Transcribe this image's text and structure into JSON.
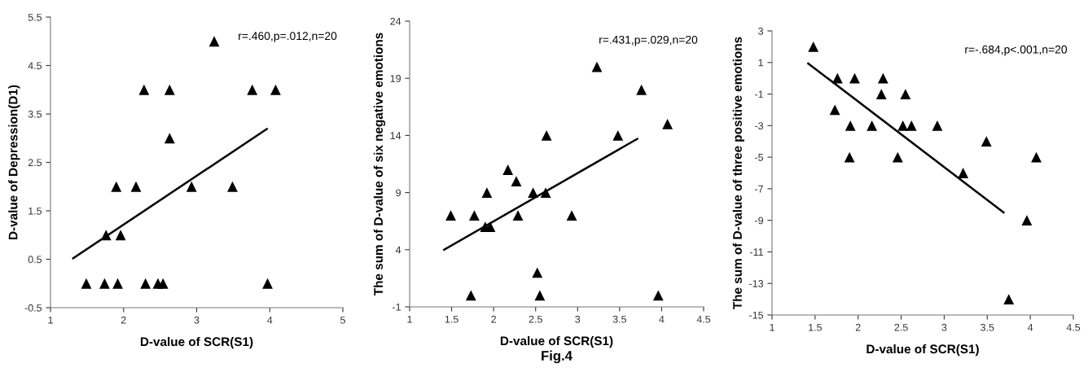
{
  "chart_data": [
    {
      "type": "scatter",
      "xlabel": "D-value of SCR(S1)",
      "ylabel": "D-value of Depression(D1)",
      "annotations": [
        "r=.460,p=.012,n=20"
      ],
      "grid": false,
      "xlim": [
        1,
        5
      ],
      "xticks": [
        1,
        2,
        3,
        4,
        5
      ],
      "ylim": [
        -0.5,
        5.5
      ],
      "yticks": [
        -0.5,
        0.5,
        1.5,
        2.5,
        3.5,
        4.5,
        5.5
      ],
      "series": [
        {
          "type": "scatter",
          "marker": "triangle",
          "color": "#000000",
          "x": [
            3.24,
            2.28,
            2.63,
            3.76,
            4.08,
            2.63,
            1.9,
            2.17,
            2.93,
            3.49,
            1.76,
            1.96,
            1.49,
            1.74,
            1.92,
            2.3,
            2.47,
            2.54,
            3.97
          ],
          "values": [
            5,
            4,
            4,
            4,
            4,
            3,
            2,
            2,
            2,
            2,
            1,
            1,
            0,
            0,
            0,
            0,
            0,
            0,
            0
          ]
        },
        {
          "type": "line",
          "color": "#000000",
          "x": [
            1.31,
            3.96
          ],
          "values": [
            0.52,
            3.19
          ]
        }
      ]
    },
    {
      "type": "scatter",
      "xlabel": "D-value of SCR(S1)",
      "ylabel": "The sum of D-value of six negative emotions",
      "annotations": [
        "r=.431,p=.029,n=20",
        "Fig.4"
      ],
      "grid": false,
      "xlim": [
        1,
        4.5
      ],
      "xticks": [
        1,
        1.5,
        2,
        2.5,
        3,
        3.5,
        4,
        4.5
      ],
      "ylim": [
        -1,
        24
      ],
      "yticks": [
        -1,
        4,
        9,
        14,
        19,
        24
      ],
      "series": [
        {
          "type": "scatter",
          "marker": "triangle",
          "color": "#000000",
          "x": [
            3.23,
            3.76,
            4.07,
            2.63,
            3.48,
            2.17,
            2.27,
            1.92,
            2.47,
            2.62,
            1.49,
            1.77,
            2.29,
            2.93,
            1.9,
            1.96,
            2.52,
            1.73,
            2.55,
            3.96
          ],
          "values": [
            20,
            18,
            15,
            14,
            14,
            11,
            10,
            9,
            9,
            9,
            7,
            7,
            7,
            7,
            6,
            6,
            2,
            0,
            0,
            0
          ]
        },
        {
          "type": "line",
          "color": "#000000",
          "x": [
            1.41,
            3.71
          ],
          "values": [
            4.0,
            13.7
          ]
        }
      ]
    },
    {
      "type": "scatter",
      "xlabel": "D-value of SCR(S1)",
      "ylabel": "The sum of D-value of three positive emotions",
      "annotations": [
        "r=-.684,p<.001,n=20"
      ],
      "grid": false,
      "xlim": [
        1,
        4.5
      ],
      "xticks": [
        1,
        1.5,
        2,
        2.5,
        3,
        3.5,
        4,
        4.5
      ],
      "ylim": [
        -15,
        3
      ],
      "yticks": [
        -15,
        -13,
        -11,
        -9,
        -7,
        -5,
        -3,
        -1,
        1,
        3
      ],
      "series": [
        {
          "type": "scatter",
          "marker": "triangle",
          "color": "#000000",
          "x": [
            1.48,
            1.76,
            1.96,
            2.29,
            2.27,
            2.55,
            1.73,
            1.91,
            2.16,
            2.52,
            2.62,
            2.92,
            3.49,
            1.9,
            2.46,
            4.07,
            3.22,
            3.96,
            3.75
          ],
          "values": [
            2,
            0,
            0,
            0,
            -1,
            -1,
            -2,
            -3,
            -3,
            -3,
            -3,
            -3,
            -4,
            -5,
            -5,
            -5,
            -6,
            -9,
            -14
          ]
        },
        {
          "type": "line",
          "color": "#000000",
          "x": [
            1.42,
            3.69
          ],
          "values": [
            0.94,
            -8.5
          ]
        }
      ]
    }
  ]
}
